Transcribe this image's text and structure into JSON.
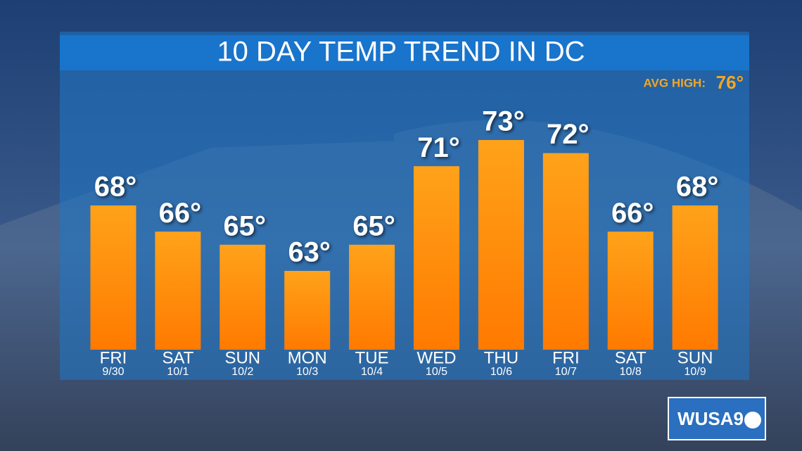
{
  "chart_data": {
    "type": "bar",
    "title": "10 DAY TEMP TREND IN DC",
    "avg_high_text": "AVG HIGH:",
    "avg_high": {
      "value": 76,
      "label": "76°"
    },
    "categories": [
      "FRI",
      "SAT",
      "SUN",
      "MON",
      "TUE",
      "WED",
      "THU",
      "FRI",
      "SAT",
      "SUN"
    ],
    "dates": [
      "9/30",
      "10/1",
      "10/2",
      "10/3",
      "10/4",
      "10/5",
      "10/6",
      "10/7",
      "10/8",
      "10/9"
    ],
    "values": [
      68,
      66,
      65,
      63,
      65,
      71,
      73,
      72,
      66,
      68
    ],
    "value_labels": [
      "68°",
      "66°",
      "65°",
      "63°",
      "65°",
      "71°",
      "73°",
      "72°",
      "66°",
      "68°"
    ],
    "color": "#ff8a00",
    "logo": "WUSA9"
  }
}
